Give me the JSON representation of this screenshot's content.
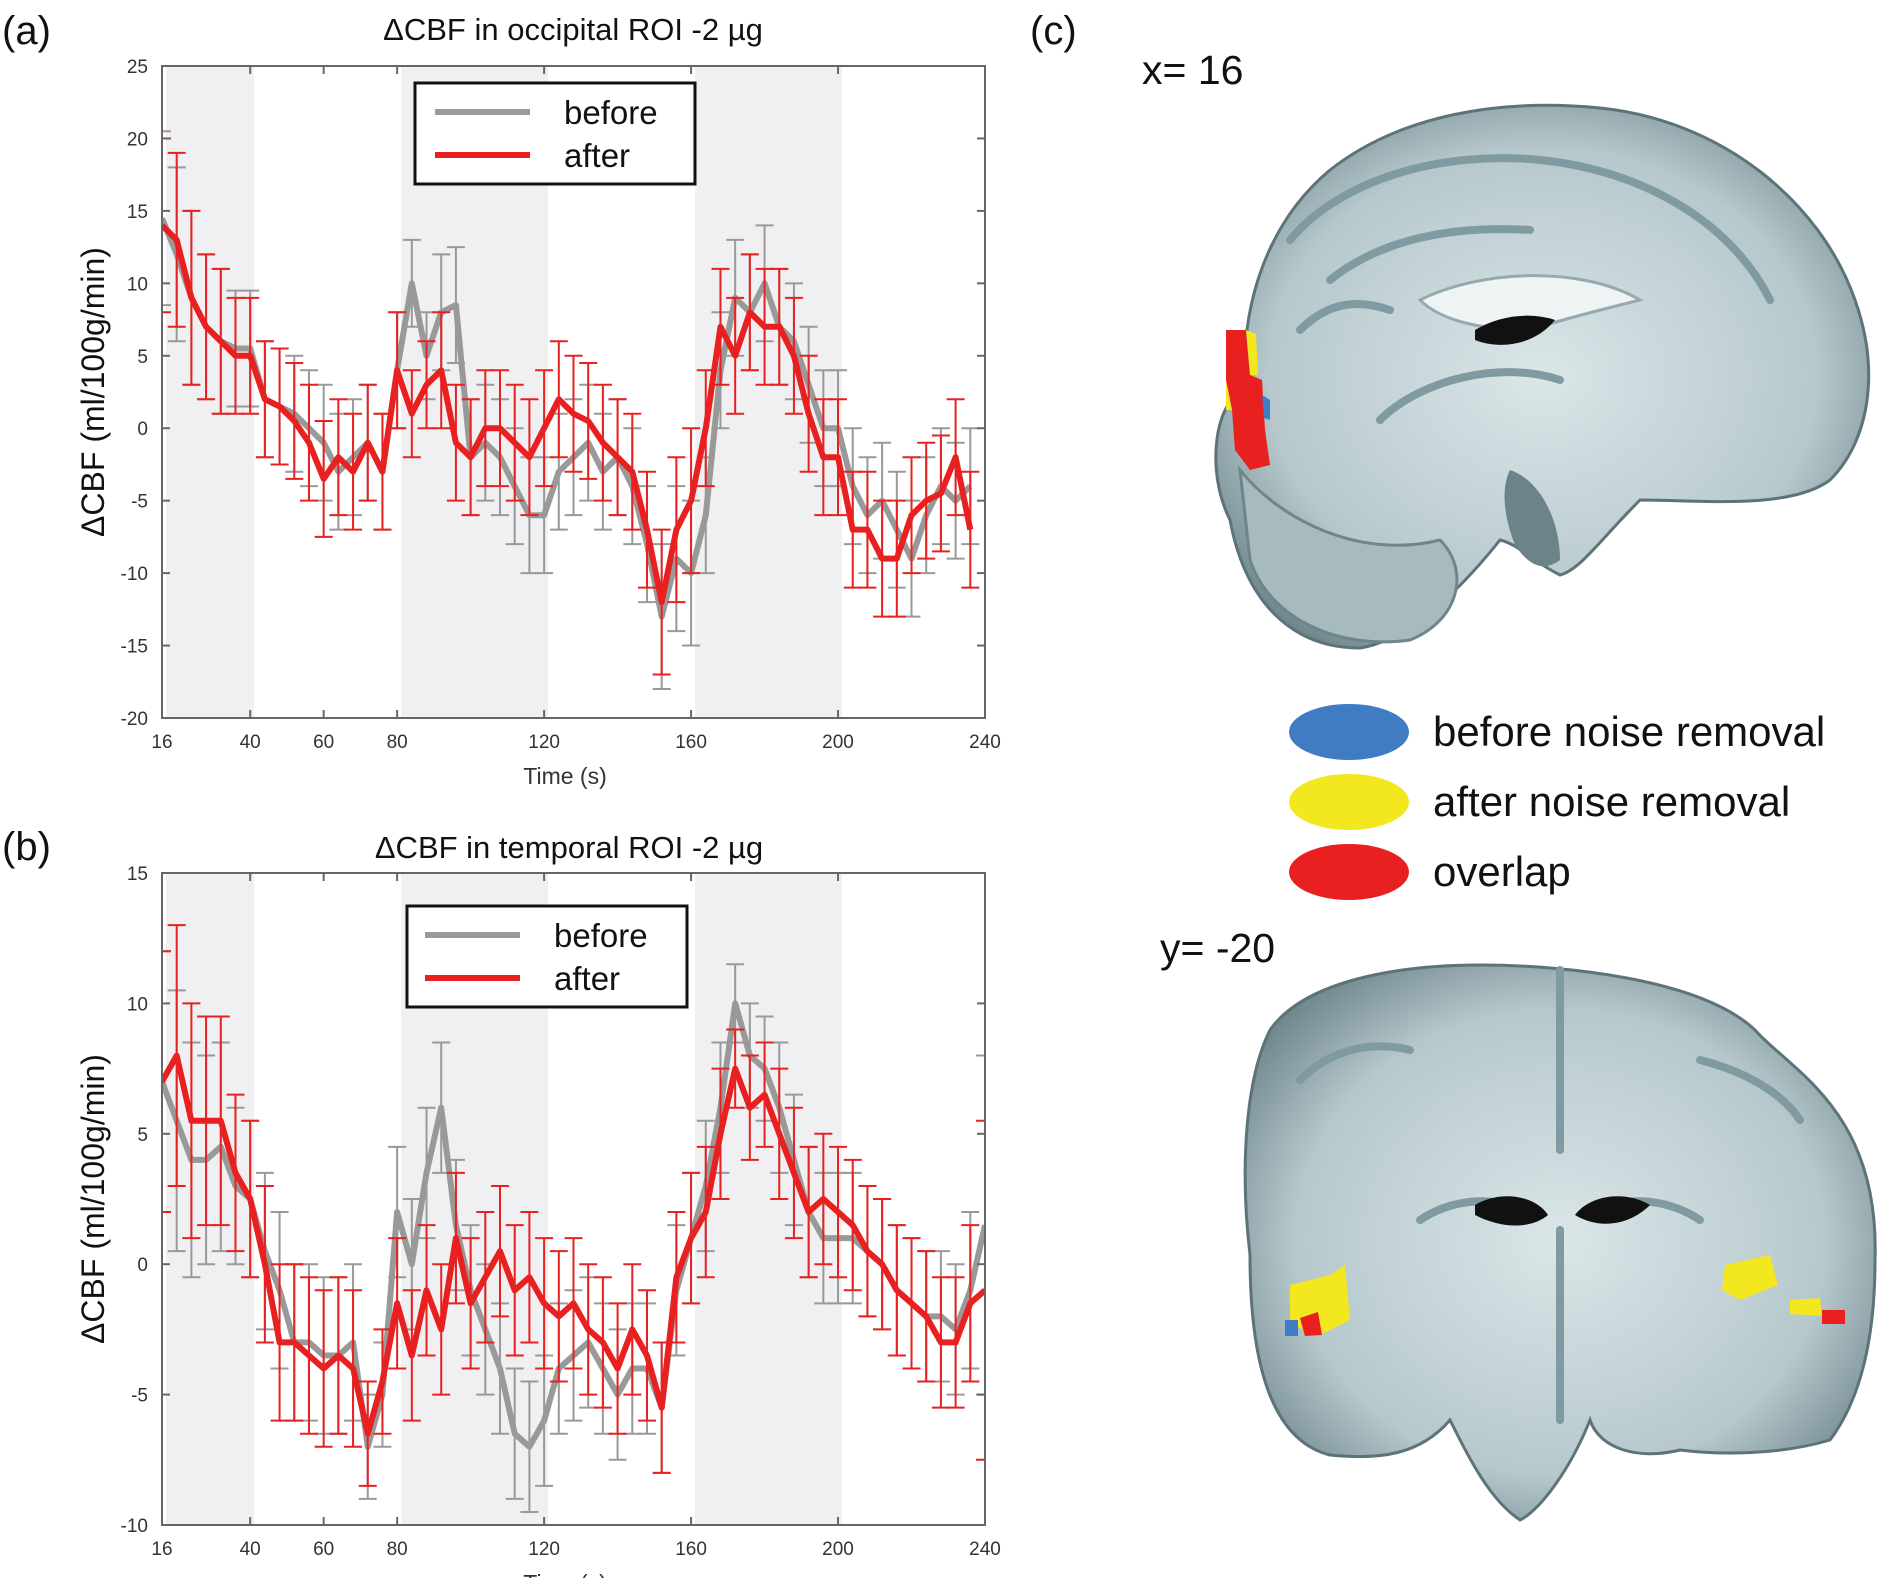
{
  "panels": {
    "a": "(a)",
    "b": "(b)",
    "c": "(c)"
  },
  "colors": {
    "before": "#999999",
    "after": "#e8201f",
    "stim_band": "#f0f0f3",
    "legend_before_map": "#3f7cc4",
    "legend_after_map": "#f3e81f",
    "legend_overlap_map": "#e8201f"
  },
  "chart_data": [
    {
      "type": "line",
      "title": "ΔCBF in occipital ROI -2 µg",
      "xlabel": "Time (s)",
      "ylabel": "ΔCBF (ml/100g/min)",
      "xlim": [
        16,
        240
      ],
      "ylim": [
        -20,
        25
      ],
      "xticks": [
        16,
        40,
        60,
        80,
        120,
        160,
        200,
        240
      ],
      "yticks": [
        -20,
        -15,
        -10,
        -5,
        0,
        5,
        10,
        15,
        20,
        25
      ],
      "stim_bands": [
        [
          16,
          40
        ],
        [
          80,
          120
        ],
        [
          160,
          200
        ]
      ],
      "legend": {
        "position": "top-center",
        "entries": [
          "before",
          "after"
        ]
      },
      "x": [
        16,
        20,
        24,
        28,
        32,
        36,
        40,
        44,
        48,
        52,
        56,
        60,
        64,
        68,
        72,
        76,
        80,
        84,
        88,
        92,
        96,
        100,
        104,
        108,
        112,
        116,
        120,
        124,
        128,
        132,
        136,
        140,
        144,
        148,
        152,
        156,
        160,
        164,
        168,
        172,
        176,
        180,
        184,
        188,
        192,
        196,
        200,
        204,
        208,
        212,
        216,
        220,
        224,
        228,
        232,
        236
      ],
      "series": [
        {
          "name": "before",
          "values": [
            14.5,
            12,
            9,
            7,
            6,
            5.5,
            5.5,
            2,
            1.5,
            1,
            0,
            -1,
            -3,
            -2,
            -1,
            -3,
            4,
            10,
            5,
            8,
            8.5,
            -2,
            -1,
            -2,
            -4,
            -6,
            -6,
            -3,
            -2,
            -1,
            -3,
            -2,
            -4,
            -8,
            -13,
            -9,
            -10,
            -6,
            4,
            9,
            8,
            10,
            7,
            6,
            3,
            0,
            0,
            -4,
            -6,
            -5,
            -7,
            -9,
            -6,
            -4,
            -5,
            -4
          ],
          "err": [
            6,
            6,
            6,
            5,
            5,
            4,
            4,
            4,
            4,
            4,
            4,
            4,
            4,
            4,
            4,
            4,
            4,
            3,
            3,
            4,
            4,
            4,
            4,
            4,
            4,
            4,
            4,
            4,
            4,
            4,
            4,
            4,
            4,
            4,
            5,
            5,
            5,
            4,
            4,
            4,
            4,
            4,
            4,
            4,
            4,
            4,
            4,
            4,
            4,
            4,
            4,
            4,
            4,
            4,
            4,
            4
          ]
        },
        {
          "name": "after",
          "values": [
            14,
            13,
            9,
            7,
            6,
            5,
            5,
            2,
            1.5,
            0.5,
            -1,
            -3.5,
            -2,
            -3,
            -1,
            -3,
            4,
            1,
            3,
            4,
            -1,
            -2,
            0,
            0,
            -1,
            -2,
            0,
            2,
            1,
            0.5,
            -1,
            -2,
            -3,
            -7,
            -12,
            -7,
            -5,
            0,
            7,
            5,
            8,
            7,
            7,
            5,
            1,
            -2,
            -2,
            -7,
            -7,
            -9,
            -9,
            -6,
            -5,
            -4.5,
            -2,
            -7
          ]
        }
      ]
    },
    {
      "type": "line",
      "title": "ΔCBF in temporal  ROI -2 µg",
      "xlabel": "Time (s)",
      "ylabel": "ΔCBF (ml/100g/min)",
      "xlim": [
        16,
        240
      ],
      "ylim": [
        -10,
        15
      ],
      "xticks": [
        16,
        40,
        60,
        80,
        120,
        160,
        200,
        240
      ],
      "yticks": [
        -10,
        -5,
        0,
        5,
        10,
        15
      ],
      "stim_bands": [
        [
          16,
          40
        ],
        [
          80,
          120
        ],
        [
          160,
          200
        ]
      ],
      "legend": {
        "position": "top-center",
        "entries": [
          "before",
          "after"
        ]
      },
      "x": [
        16,
        20,
        24,
        28,
        32,
        36,
        40,
        44,
        48,
        52,
        56,
        60,
        64,
        68,
        72,
        76,
        80,
        84,
        88,
        92,
        96,
        100,
        104,
        108,
        112,
        116,
        120,
        124,
        128,
        132,
        136,
        140,
        144,
        148,
        152,
        156,
        160,
        164,
        168,
        172,
        176,
        180,
        184,
        188,
        192,
        196,
        200,
        204,
        208,
        212,
        216,
        220,
        224,
        228,
        232,
        236,
        240
      ],
      "series": [
        {
          "name": "before",
          "values": [
            7,
            5.5,
            4,
            4,
            4.5,
            3,
            2.5,
            0.5,
            -1,
            -3,
            -3,
            -3.5,
            -3.5,
            -3,
            -7,
            -5,
            2,
            0,
            3.5,
            6,
            1.5,
            -1,
            -2.5,
            -4,
            -6.5,
            -7,
            -6,
            -4,
            -3.5,
            -3,
            -4,
            -5,
            -4,
            -4,
            -5.5,
            -1,
            1,
            3,
            6,
            10,
            8,
            7.5,
            6,
            4,
            2,
            1,
            1,
            1,
            0.5,
            0,
            -1,
            -1.5,
            -2,
            -2,
            -2.5,
            -1,
            1.5
          ],
          "err": [
            5,
            5,
            4.5,
            4,
            4,
            3,
            3,
            3,
            3,
            3,
            3,
            3,
            3,
            3,
            2,
            2,
            2.5,
            2.5,
            2.5,
            2.5,
            2.5,
            2.5,
            2.5,
            2.5,
            2.5,
            2.5,
            2.5,
            2.5,
            2.5,
            2.5,
            2.5,
            2.5,
            2.5,
            2.5,
            2.5,
            2.5,
            2.5,
            2.5,
            2.5,
            1.5,
            2,
            2,
            2.5,
            2.5,
            2.5,
            2.5,
            2.5,
            2.5,
            2.5,
            2.5,
            2.5,
            2.5,
            2.5,
            2.5,
            2.5,
            3,
            6.5
          ]
        },
        {
          "name": "after",
          "values": [
            7,
            8,
            5.5,
            5.5,
            5.5,
            3.5,
            2.5,
            0,
            -3,
            -3,
            -3.5,
            -4,
            -3.5,
            -4,
            -6.5,
            -4.5,
            -1.5,
            -3.5,
            -1,
            -2.5,
            1,
            -1.5,
            -0.5,
            0.5,
            -1,
            -0.5,
            -1.5,
            -2,
            -1.5,
            -2.5,
            -3,
            -4,
            -2.5,
            -3.5,
            -5.5,
            -0.5,
            1,
            2,
            5,
            7.5,
            6,
            6.5,
            5,
            3.5,
            2,
            2.5,
            2,
            1.5,
            0.5,
            0,
            -1,
            -1.5,
            -2,
            -3,
            -3,
            -1.5,
            -1
          ]
        }
      ]
    }
  ],
  "maps": {
    "sagittal_label": "x= 16",
    "coronal_label": "y= -20",
    "legend": [
      {
        "label": "before noise removal"
      },
      {
        "label": "after noise removal"
      },
      {
        "label": "overlap"
      }
    ]
  }
}
